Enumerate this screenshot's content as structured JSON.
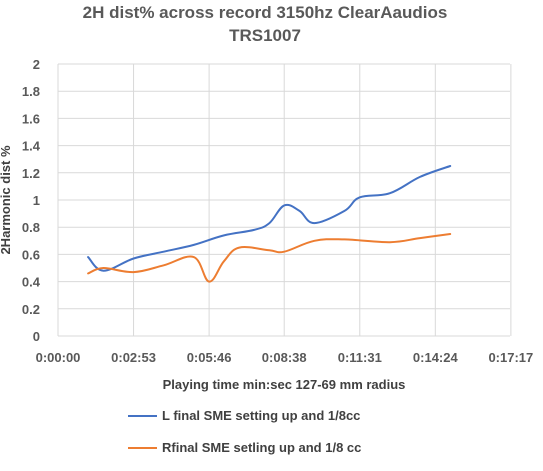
{
  "chart_data": {
    "type": "line",
    "title_line1": "2H dist%  across record 3150hz ClearAaudios",
    "title_line2": "TRS1007",
    "xlabel": "Playing time min:sec 127-69 mm radius",
    "ylabel": "2Harmonic dist %",
    "xlim": [
      0,
      1035
    ],
    "ylim": [
      0,
      2
    ],
    "x_tick_values": [
      0,
      173,
      346,
      518,
      691,
      864,
      1037
    ],
    "x_tick_labels": [
      "0:00:00",
      "0:02:53",
      "0:05:46",
      "0:08:38",
      "0:11:31",
      "0:14:24",
      "0:17:17"
    ],
    "y_ticks": [
      "0",
      "0.2",
      "0.4",
      "0.6",
      "0.8",
      "1",
      "1.2",
      "1.4",
      "1.6",
      "1.8",
      "2"
    ],
    "y_tick_values": [
      0,
      0.2,
      0.4,
      0.6,
      0.8,
      1.0,
      1.2,
      1.4,
      1.6,
      1.8,
      2.0
    ],
    "gridlines": true,
    "legend_position": "bottom",
    "series": [
      {
        "name": "L final SME setting  up and 1/8cc",
        "color": "#4472c4",
        "points": [
          [
            69,
            0.58
          ],
          [
            104,
            0.48
          ],
          [
            173,
            0.57
          ],
          [
            242,
            0.62
          ],
          [
            311,
            0.67
          ],
          [
            380,
            0.74
          ],
          [
            449,
            0.78
          ],
          [
            484,
            0.83
          ],
          [
            518,
            0.96
          ],
          [
            553,
            0.92
          ],
          [
            587,
            0.83
          ],
          [
            656,
            0.92
          ],
          [
            691,
            1.02
          ],
          [
            760,
            1.05
          ],
          [
            829,
            1.17
          ],
          [
            898,
            1.25
          ]
        ]
      },
      {
        "name": "Rfinal SME setling  up and 1/8 cc",
        "color": "#ed7d31",
        "points": [
          [
            69,
            0.46
          ],
          [
            104,
            0.5
          ],
          [
            173,
            0.47
          ],
          [
            242,
            0.52
          ],
          [
            311,
            0.58
          ],
          [
            346,
            0.4
          ],
          [
            380,
            0.55
          ],
          [
            415,
            0.65
          ],
          [
            484,
            0.63
          ],
          [
            518,
            0.62
          ],
          [
            587,
            0.7
          ],
          [
            656,
            0.71
          ],
          [
            760,
            0.69
          ],
          [
            829,
            0.72
          ],
          [
            898,
            0.75
          ]
        ]
      }
    ]
  }
}
